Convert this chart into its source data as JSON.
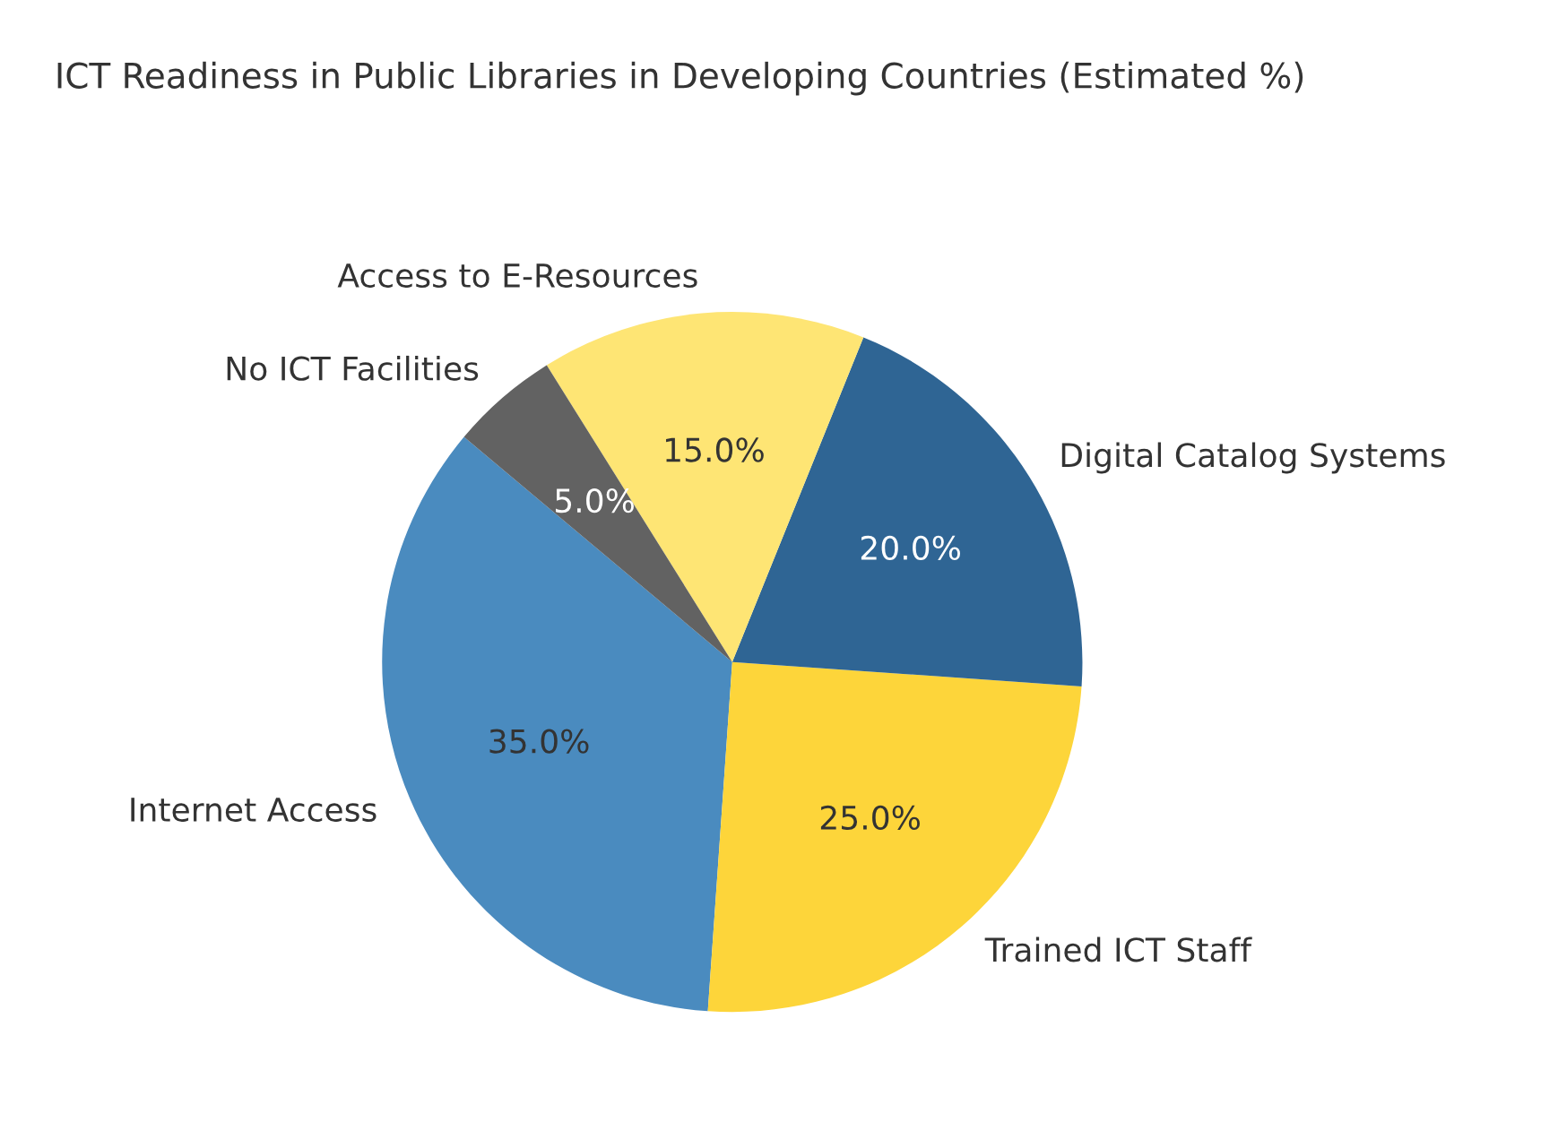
{
  "chart_data": {
    "type": "pie",
    "title": "ICT Readiness in Public Libraries in Developing Countries (Estimated %)",
    "categories": [
      "Internet Access",
      "Trained ICT Staff",
      "Digital Catalog Systems",
      "Access to E-Resources",
      "No ICT Facilities"
    ],
    "values": [
      35,
      25,
      20,
      15,
      5
    ],
    "colors": [
      "#4a8bbf",
      "#fdd53a",
      "#2f6594",
      "#fee574",
      "#626262"
    ],
    "value_labels": [
      "35.0%",
      "25.0%",
      "20.0%",
      "15.0%",
      "5.0%"
    ]
  }
}
